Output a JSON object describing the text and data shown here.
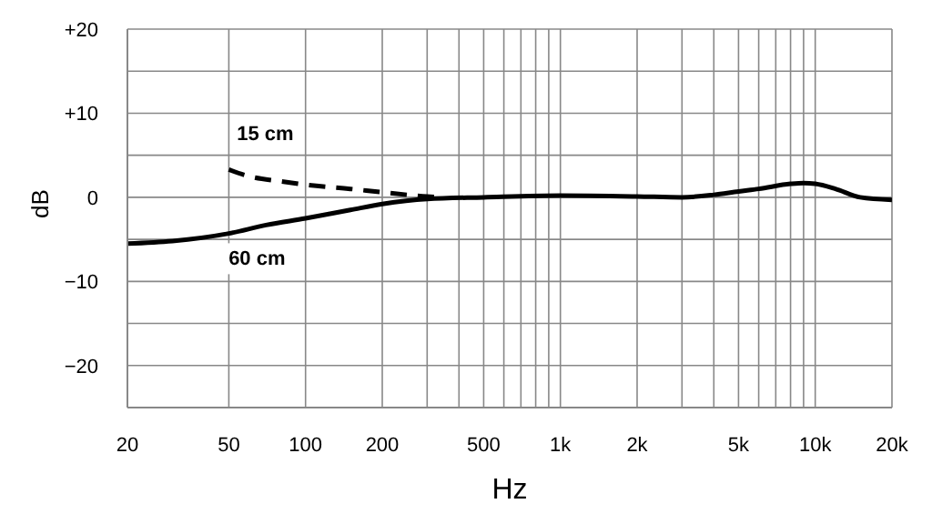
{
  "chart_data": {
    "type": "line",
    "xlabel": "Hz",
    "ylabel": "dB",
    "log": "x",
    "grid": true,
    "marker": "none",
    "xlim": [
      20,
      20000
    ],
    "ylim": [
      -25,
      20
    ],
    "xticks": [
      20,
      50,
      100,
      200,
      {
        "value": 300,
        "label": null
      },
      {
        "value": 400,
        "label": null
      },
      500,
      {
        "value": 600,
        "label": null
      },
      {
        "value": 700,
        "label": null
      },
      {
        "value": 800,
        "label": null
      },
      {
        "value": 900,
        "label": null
      },
      {
        "value": 1000,
        "label": "1k"
      },
      {
        "value": 2000,
        "label": "2k"
      },
      {
        "value": 3000,
        "label": null
      },
      {
        "value": 4000,
        "label": null
      },
      {
        "value": 5000,
        "label": "5k"
      },
      {
        "value": 6000,
        "label": null
      },
      {
        "value": 7000,
        "label": null
      },
      {
        "value": 8000,
        "label": null
      },
      {
        "value": 9000,
        "label": null
      },
      {
        "value": 10000,
        "label": "10k"
      },
      {
        "value": 20000,
        "label": "20k"
      }
    ],
    "yticks": [
      {
        "value": -25,
        "label": null
      },
      {
        "value": -20,
        "label": "−20"
      },
      {
        "value": -15,
        "label": null
      },
      {
        "value": -10,
        "label": "−10"
      },
      {
        "value": -5,
        "label": null
      },
      0,
      {
        "value": 5,
        "label": null
      },
      {
        "value": 10,
        "label": "+10"
      },
      {
        "value": 15,
        "label": null
      },
      {
        "value": 20,
        "label": "+20"
      }
    ],
    "series": [
      {
        "name": "15 cm",
        "color": "#000000",
        "line_style": "dashed",
        "x": [
          50,
          60,
          80,
          100,
          150,
          200,
          300,
          350
        ],
        "values": [
          3.3,
          2.5,
          1.9,
          1.5,
          1.0,
          0.6,
          0.1,
          0
        ]
      },
      {
        "name": "60 cm",
        "color": "#000000",
        "line_style": "solid",
        "x": [
          20,
          30,
          50,
          70,
          100,
          150,
          200,
          300,
          500,
          1000,
          2000,
          3000,
          4000,
          5000,
          6000,
          8000,
          9000,
          10000,
          12000,
          15000,
          20000
        ],
        "values": [
          -5.5,
          -5.2,
          -4.3,
          -3.3,
          -2.5,
          -1.5,
          -0.8,
          -0.2,
          0,
          0.2,
          0.1,
          0,
          0.3,
          0.7,
          1.0,
          1.6,
          1.7,
          1.6,
          1.0,
          0,
          -0.3
        ]
      }
    ]
  }
}
